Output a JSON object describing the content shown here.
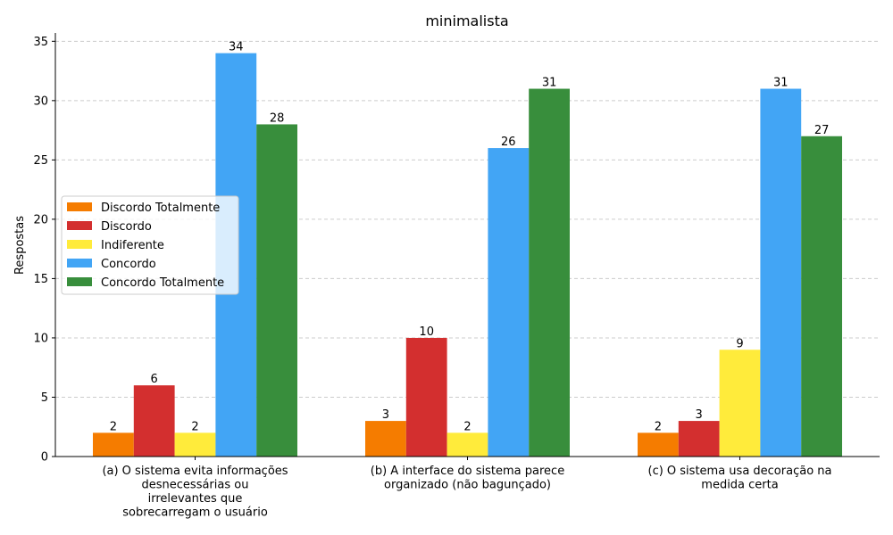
{
  "chart_data": {
    "type": "bar",
    "title": "minimalista",
    "xlabel": "",
    "ylabel": "Respostas",
    "ylim": [
      0,
      35.7
    ],
    "yticks": [
      0,
      5,
      10,
      15,
      20,
      25,
      30,
      35
    ],
    "grid": "horizontal dashed",
    "legend_position": "center-left",
    "categories": [
      [
        "(a) O sistema evita informações",
        "desnecessárias ou",
        "irrelevantes que",
        "sobrecarregam o usuário"
      ],
      [
        "(b) A interface do sistema parece",
        "organizado (não bagunçado)"
      ],
      [
        "(c) O sistema usa decoração na",
        "medida certa"
      ]
    ],
    "series": [
      {
        "name": "Discordo Totalmente",
        "color": "#f57c00",
        "values": [
          2,
          3,
          2
        ]
      },
      {
        "name": "Discordo",
        "color": "#d32f2f",
        "values": [
          6,
          10,
          3
        ]
      },
      {
        "name": "Indiferente",
        "color": "#ffeb3b",
        "values": [
          2,
          2,
          9
        ]
      },
      {
        "name": "Concordo",
        "color": "#42a5f5",
        "values": [
          34,
          26,
          31
        ]
      },
      {
        "name": "Concordo Totalmente",
        "color": "#388e3c",
        "values": [
          28,
          31,
          27
        ]
      }
    ]
  }
}
